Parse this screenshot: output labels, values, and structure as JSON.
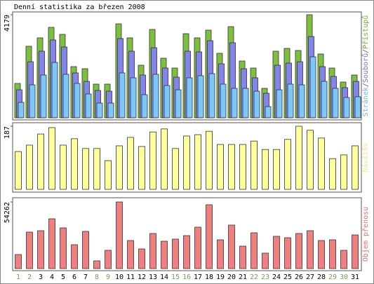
{
  "chart_data": [
    {
      "type": "bar",
      "title": "Denní statistika za březen 2008",
      "legend_separator": "/",
      "ylim": [
        0,
        4179
      ],
      "yticks": [
        4179
      ],
      "series": [
        {
          "name": "Stránek",
          "color": "#7ec8f8",
          "values": [
            625,
            1336,
            1734,
            2246,
            1763,
            1393,
            967,
            597,
            597,
            1820,
            1621,
            938,
            1763,
            1308,
            1137,
            1621,
            1706,
            1791,
            1365,
            1194,
            1194,
            1080,
            455,
            1137,
            1365,
            1336,
            2473,
            1478,
            1194,
            824,
            853
          ]
        },
        {
          "name": "Souborů",
          "color": "#8484ee",
          "values": [
            1137,
            2274,
            2701,
            3156,
            2871,
            1820,
            1478,
            1109,
            1080,
            3213,
            2701,
            1734,
            2843,
            2019,
            1649,
            2701,
            2672,
            3127,
            2189,
            3042,
            1990,
            1621,
            995,
            2132,
            2218,
            2274,
            3298,
            2075,
            1677,
            1222,
            1478
          ]
        },
        {
          "name": "Přístupů",
          "color": "#7fbf3f",
          "values": [
            1393,
            2900,
            3241,
            3667,
            3383,
            2075,
            1990,
            1365,
            1365,
            3809,
            3241,
            2132,
            3582,
            2416,
            2018,
            3411,
            3241,
            3554,
            2615,
            3696,
            2303,
            2018,
            1194,
            2701,
            2814,
            2729,
            4179,
            2587,
            2018,
            1450,
            1734
          ]
        }
      ]
    },
    {
      "type": "bar",
      "ylim": [
        0,
        187
      ],
      "yticks": [
        187
      ],
      "series": [
        {
          "name": "Návštěv",
          "color": "#ffff99",
          "values": [
            112,
            131,
            164,
            183,
            131,
            150,
            121,
            121,
            85,
            129,
            154,
            127,
            170,
            179,
            121,
            158,
            162,
            172,
            133,
            133,
            133,
            143,
            118,
            118,
            148,
            187,
            175,
            152,
            91,
            102,
            129
          ]
        }
      ]
    },
    {
      "type": "bar",
      "ylim": [
        0,
        54262
      ],
      "yticks": [
        54262
      ],
      "categories": [
        "1",
        "2",
        "3",
        "4",
        "5",
        "6",
        "7",
        "8",
        "9",
        "10",
        "11",
        "12",
        "13",
        "14",
        "15",
        "16",
        "17",
        "18",
        "19",
        "20",
        "21",
        "22",
        "23",
        "24",
        "25",
        "26",
        "27",
        "28",
        "29",
        "30",
        "31"
      ],
      "category_colors": [
        "#6aa84f",
        "#6aa84f",
        "#000000",
        "#000000",
        "#000000",
        "#000000",
        "#000000",
        "#6aa84f",
        "#6aa84f",
        "#000000",
        "#000000",
        "#000000",
        "#000000",
        "#000000",
        "#6aa84f",
        "#6aa84f",
        "#000000",
        "#000000",
        "#000000",
        "#000000",
        "#000000",
        "#6aa84f",
        "#6aa84f",
        "#000000",
        "#000000",
        "#000000",
        "#000000",
        "#000000",
        "#6aa84f",
        "#6aa84f",
        "#000000"
      ],
      "series": [
        {
          "name": "Objem přenosu",
          "color": "#f08080",
          "values": [
            11424,
            29702,
            30845,
            40555,
            33130,
            19421,
            30274,
            6283,
            14851,
            54262,
            22848,
            15994,
            28560,
            22277,
            23990,
            26846,
            33701,
            51979,
            23419,
            35414,
            18278,
            29131,
            12566,
            26275,
            25133,
            28560,
            30845,
            22848,
            23419,
            14851,
            27418
          ]
        }
      ]
    }
  ]
}
